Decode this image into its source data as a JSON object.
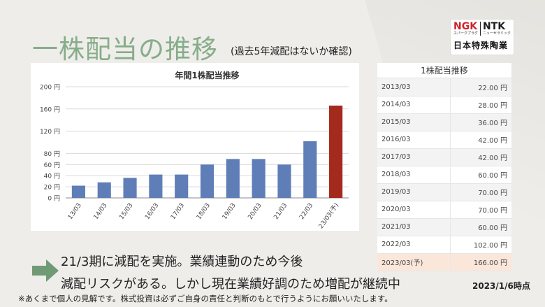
{
  "title": "一株配当の推移",
  "subtitle": "(過去5年減配はないか確認)",
  "logo": {
    "ngk": "NGK",
    "ngk_sub": "スパークプラグ",
    "ntk": "NTK",
    "ntk_sub": "ニューセラミック",
    "company": "日本特殊陶業"
  },
  "chart_data": {
    "type": "bar",
    "title": "年間1株配当推移",
    "categories": [
      "13/03",
      "14/03",
      "15/03",
      "16/03",
      "17/03",
      "18/03",
      "19/03",
      "20/03",
      "21/03",
      "22/03",
      "23/03(予)"
    ],
    "values": [
      22,
      28,
      36,
      42,
      42,
      60,
      70,
      70,
      60,
      102,
      166
    ],
    "ylim": [
      0,
      200
    ],
    "yticks": [
      "0 円",
      "20 円",
      "40 円",
      "60 円",
      "80 円",
      "120 円",
      "160 円",
      "200 円"
    ],
    "ytick_values": [
      0,
      20,
      40,
      60,
      80,
      120,
      160,
      200
    ],
    "bar_color": "#5f7eb8",
    "highlight_color": "#a52a1e",
    "grid": true
  },
  "table": {
    "header": "1株配当推移",
    "rows": [
      {
        "period": "2013/03",
        "value": "22.00 円"
      },
      {
        "period": "2014/03",
        "value": "28.00 円"
      },
      {
        "period": "2015/03",
        "value": "36.00 円"
      },
      {
        "period": "2016/03",
        "value": "42.00 円"
      },
      {
        "period": "2017/03",
        "value": "42.00 円"
      },
      {
        "period": "2018/03",
        "value": "60.00 円"
      },
      {
        "period": "2019/03",
        "value": "70.00 円"
      },
      {
        "period": "2020/03",
        "value": "70.00 円"
      },
      {
        "period": "2021/03",
        "value": "60.00 円"
      },
      {
        "period": "2022/03",
        "value": "102.00 円"
      },
      {
        "period": "2023/03(予)",
        "value": "166.00 円"
      }
    ]
  },
  "body": {
    "line1": "21/3期に減配を実施。業績連動のため今後",
    "line2": "減配リスクがある。しかし現在業績好調のため増配が継続中"
  },
  "as_of": "2023/1/6時点",
  "note": "※あくまで個人の見解です。株式投資は必ずご自身の責任と判断のもとで行うようにお願いいたします。",
  "colors": {
    "title": "#86ad8a",
    "arrow": "#6f9a74",
    "table_last_row": "#fbe7da"
  },
  "icons": {
    "arrow": "right-arrow-icon"
  }
}
